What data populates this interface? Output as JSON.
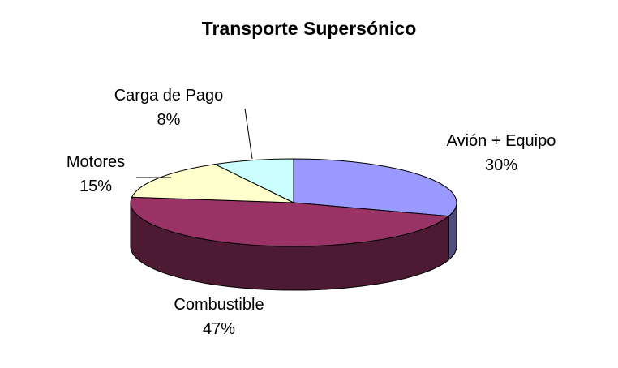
{
  "chart_data": {
    "type": "pie",
    "style": "3d",
    "title": "Transporte Supersónico",
    "slices": [
      {
        "label": "Avión + Equipo",
        "value": 30,
        "percent_label": "30%",
        "color": "#9999FF"
      },
      {
        "label": "Combustible",
        "value": 47,
        "percent_label": "47%",
        "color": "#993366"
      },
      {
        "label": "Motores",
        "value": 15,
        "percent_label": "15%",
        "color": "#FFFFCC"
      },
      {
        "label": "Carga de Pago",
        "value": 8,
        "percent_label": "8%",
        "color": "#CCFFFF"
      }
    ],
    "legend": "none"
  }
}
